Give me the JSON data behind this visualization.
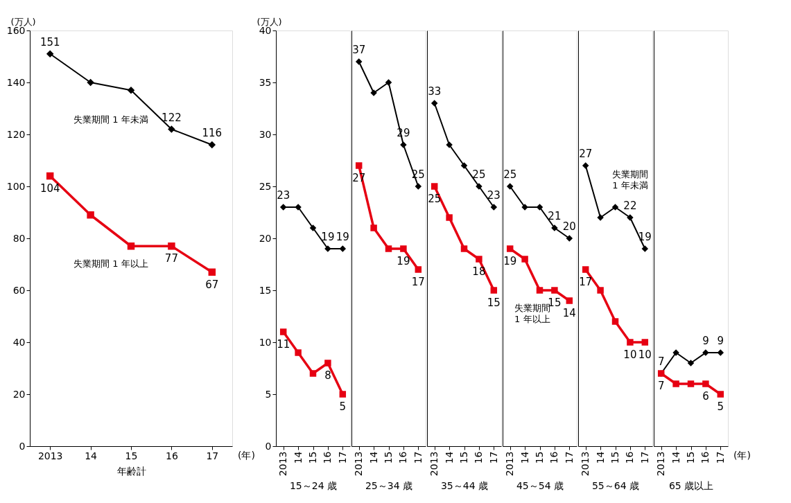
{
  "chart_data": [
    {
      "type": "line",
      "xlabel": "年齢計",
      "ylabel": "(万人)",
      "categories": [
        "2013",
        "14",
        "15",
        "16",
        "17"
      ],
      "ylim": [
        0,
        160
      ],
      "yticks": [
        0,
        20,
        40,
        60,
        80,
        100,
        120,
        140,
        160
      ],
      "annotations": [
        "(年)"
      ],
      "line_style": "solid",
      "series": [
        {
          "name": "失業期間 1 年未満",
          "color": "#000000",
          "marker": "diamond",
          "values": [
            151,
            140,
            137,
            122,
            116
          ],
          "value_labels": [
            "151",
            null,
            null,
            "122",
            "116"
          ]
        },
        {
          "name": "失業期間 1 年以上",
          "color": "#e60012",
          "marker": "square",
          "values": [
            104,
            89,
            77,
            77,
            67
          ],
          "value_labels": [
            "104",
            null,
            null,
            "77",
            "67"
          ]
        }
      ]
    },
    {
      "type": "line",
      "xlabel": "15～24 歳",
      "ylabel": "(万人)",
      "categories": [
        "2013",
        "14",
        "15",
        "16",
        "17"
      ],
      "ylim": [
        0,
        40
      ],
      "yticks": [
        0,
        5,
        10,
        15,
        20,
        25,
        30,
        35,
        40
      ],
      "line_style": "solid",
      "series": [
        {
          "color": "#000000",
          "marker": "diamond",
          "values": [
            23,
            23,
            21,
            19,
            19
          ],
          "value_labels": [
            "23",
            null,
            null,
            "19",
            "19"
          ]
        },
        {
          "color": "#e60012",
          "marker": "square",
          "values": [
            11,
            9,
            7,
            8,
            5
          ],
          "value_labels": [
            "11",
            null,
            null,
            "8",
            "5"
          ]
        }
      ]
    },
    {
      "type": "line",
      "xlabel": "25～34 歳",
      "categories": [
        "2013",
        "14",
        "15",
        "16",
        "17"
      ],
      "ylim": [
        0,
        40
      ],
      "tick_labels": "x",
      "line_style": "solid",
      "series": [
        {
          "color": "#000000",
          "marker": "diamond",
          "values": [
            37,
            34,
            35,
            29,
            25
          ],
          "value_labels": [
            "37",
            null,
            null,
            "29",
            "25"
          ]
        },
        {
          "color": "#e60012",
          "marker": "square",
          "values": [
            27,
            21,
            19,
            19,
            17
          ],
          "value_labels": [
            "27",
            null,
            null,
            "19",
            "17"
          ]
        }
      ]
    },
    {
      "type": "line",
      "xlabel": "35～44 歳",
      "categories": [
        "2013",
        "14",
        "15",
        "16",
        "17"
      ],
      "ylim": [
        0,
        40
      ],
      "tick_labels": "x",
      "line_style": "solid",
      "series": [
        {
          "color": "#000000",
          "marker": "diamond",
          "values": [
            33,
            29,
            27,
            25,
            23
          ],
          "value_labels": [
            "33",
            null,
            null,
            "25",
            "23"
          ]
        },
        {
          "color": "#e60012",
          "marker": "square",
          "values": [
            25,
            22,
            19,
            18,
            15
          ],
          "value_labels": [
            "25",
            null,
            null,
            "18",
            "15"
          ]
        }
      ]
    },
    {
      "type": "line",
      "xlabel": "45～54 歳",
      "categories": [
        "2013",
        "14",
        "15",
        "16",
        "17"
      ],
      "ylim": [
        0,
        40
      ],
      "tick_labels": "x",
      "line_style": "solid",
      "series": [
        {
          "color": "#000000",
          "marker": "diamond",
          "values": [
            25,
            23,
            23,
            21,
            20
          ],
          "value_labels": [
            "25",
            null,
            null,
            "21",
            "20"
          ]
        },
        {
          "name": "失業期間 1 年以上",
          "color": "#e60012",
          "marker": "square",
          "values": [
            19,
            18,
            15,
            15,
            14
          ],
          "value_labels": [
            "19",
            null,
            null,
            "15",
            "14"
          ]
        }
      ]
    },
    {
      "type": "line",
      "xlabel": "55～64 歳",
      "categories": [
        "2013",
        "14",
        "15",
        "16",
        "17"
      ],
      "ylim": [
        0,
        40
      ],
      "tick_labels": "x",
      "line_style": "solid",
      "series": [
        {
          "name": "失業期間 1 年未満",
          "color": "#000000",
          "marker": "diamond",
          "values": [
            27,
            22,
            23,
            22,
            19
          ],
          "value_labels": [
            "27",
            null,
            null,
            "22",
            "19"
          ]
        },
        {
          "color": "#e60012",
          "marker": "square",
          "values": [
            17,
            15,
            12,
            10,
            10
          ],
          "value_labels": [
            "17",
            null,
            null,
            "10",
            "10"
          ]
        }
      ]
    },
    {
      "type": "line",
      "xlabel": "65 歳以上",
      "categories": [
        "2013",
        "14",
        "15",
        "16",
        "17"
      ],
      "ylim": [
        0,
        40
      ],
      "tick_labels": "x",
      "annotations": [
        "(年)"
      ],
      "line_style": "solid",
      "series": [
        {
          "color": "#000000",
          "marker": "diamond",
          "values": [
            7,
            9,
            8,
            9,
            9
          ],
          "value_labels": [
            "7",
            null,
            null,
            "9",
            "9"
          ]
        },
        {
          "color": "#e60012",
          "marker": "square",
          "values": [
            7,
            6,
            6,
            6,
            5
          ],
          "value_labels": [
            "7",
            null,
            null,
            "6",
            "5"
          ]
        }
      ]
    }
  ]
}
